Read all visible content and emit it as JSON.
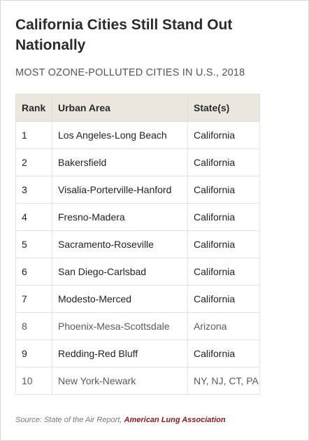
{
  "title": "California Cities Still Stand Out Nationally",
  "subtitle": "MOST OZONE-POLLUTED CITIES IN U.S., 2018",
  "table": {
    "headers": {
      "rank": "Rank",
      "area": "Urban Area",
      "state": "State(s)"
    },
    "rows": [
      {
        "rank": "1",
        "area": "Los Angeles-Long Beach",
        "state": "California"
      },
      {
        "rank": "2",
        "area": "Bakersfield",
        "state": "California"
      },
      {
        "rank": "3",
        "area": "Visalia-Porterville-Hanford",
        "state": "California"
      },
      {
        "rank": "4",
        "area": "Fresno-Madera",
        "state": "California"
      },
      {
        "rank": "5",
        "area": "Sacramento-Roseville",
        "state": "California"
      },
      {
        "rank": "6",
        "area": "San Diego-Carlsbad",
        "state": "California"
      },
      {
        "rank": "7",
        "area": "Modesto-Merced",
        "state": "California"
      },
      {
        "rank": "8",
        "area": "Phoenix-Mesa-Scottsdale",
        "state": "Arizona"
      },
      {
        "rank": "9",
        "area": "Redding-Red Bluff",
        "state": "California"
      },
      {
        "rank": "10",
        "area": "New York-Newark",
        "state": "NY, NJ, CT, PA"
      }
    ]
  },
  "source": {
    "prefix": "Source: State of the Air Report, ",
    "org": "American Lung Association"
  },
  "colors": {
    "header_bg": "#eae7df",
    "source_link": "#8a1a22"
  }
}
